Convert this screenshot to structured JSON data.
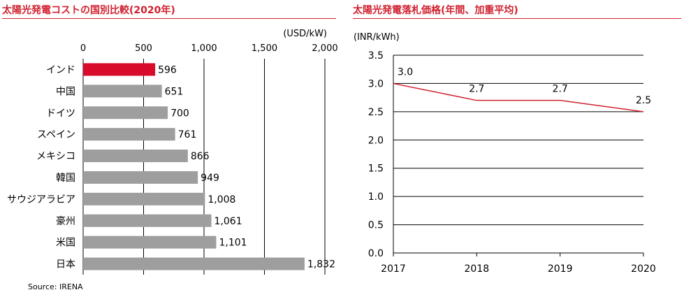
{
  "left": {
    "title": "太陽光発電コストの国別比較(2020年)",
    "unit": "(USD/kW)",
    "source": "Source: IRENA"
  },
  "right": {
    "title": "太陽光発電落札価格(年間、加重平均)",
    "unit": "(INR/kWh)"
  },
  "colors": {
    "accent": "#d0212f",
    "bar": "#9e9e9e",
    "highlight": "#d80b2a",
    "line": "#d0212f"
  },
  "chart_data": [
    {
      "type": "bar",
      "orientation": "horizontal",
      "title": "太陽光発電コストの国別比較(2020年)",
      "xlabel": "(USD/kW)",
      "xlim": [
        0,
        2000
      ],
      "xticks": [
        0,
        500,
        1000,
        1500,
        2000
      ],
      "xtick_labels": [
        "0",
        "500",
        "1,000",
        "1,500",
        "2,000"
      ],
      "grid": true,
      "categories": [
        "インド",
        "中国",
        "ドイツ",
        "スペイン",
        "メキシコ",
        "韓国",
        "サウジアラビア",
        "豪州",
        "米国",
        "日本"
      ],
      "values": [
        596,
        651,
        700,
        761,
        866,
        949,
        1008,
        1061,
        1101,
        1832
      ],
      "value_labels": [
        "596",
        "651",
        "700",
        "761",
        "866",
        "949",
        "1,008",
        "1,061",
        "1,101",
        "1,832"
      ],
      "highlight_index": 0
    },
    {
      "type": "line",
      "title": "太陽光発電落札価格(年間、加重平均)",
      "ylabel": "(INR/kWh)",
      "x": [
        "2017",
        "2018",
        "2019",
        "2020"
      ],
      "y": [
        3.0,
        2.7,
        2.7,
        2.5
      ],
      "value_labels": [
        "3.0",
        "2.7",
        "2.7",
        "2.5"
      ],
      "ylim": [
        0.0,
        3.5
      ],
      "yticks": [
        0.0,
        0.5,
        1.0,
        1.5,
        2.0,
        2.5,
        3.0,
        3.5
      ],
      "ytick_labels": [
        "0.0",
        "0.5",
        "1.0",
        "1.5",
        "2.0",
        "2.5",
        "3.0",
        "3.5"
      ],
      "grid": true
    }
  ]
}
